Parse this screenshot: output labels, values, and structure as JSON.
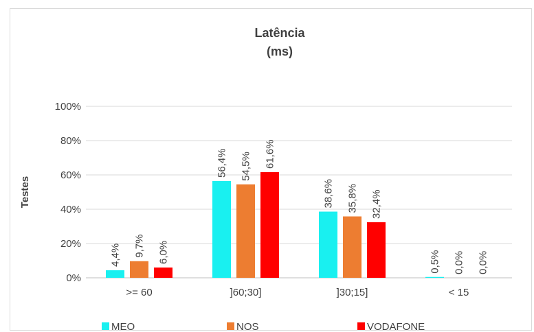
{
  "chart_data": {
    "type": "bar",
    "title": "Latência",
    "subtitle": "(ms)",
    "ylabel": "Testes",
    "xlabel": "",
    "ylim": [
      0,
      100
    ],
    "yticks": [
      "0%",
      "20%",
      "40%",
      "60%",
      "80%",
      "100%"
    ],
    "categories": [
      ">= 60",
      "]60;30]",
      "]30;15]",
      "< 15"
    ],
    "series": [
      {
        "name": "MEO",
        "color": "#19f0f0",
        "values": [
          4.4,
          56.4,
          38.6,
          0.5
        ],
        "labels": [
          "4,4%",
          "56,4%",
          "38,6%",
          "0,5%"
        ]
      },
      {
        "name": "NOS",
        "color": "#ed7d31",
        "values": [
          9.7,
          54.5,
          35.8,
          0.0
        ],
        "labels": [
          "9,7%",
          "54,5%",
          "35,8%",
          "0,0%"
        ]
      },
      {
        "name": "VODAFONE",
        "color": "#ff0000",
        "values": [
          6.0,
          61.6,
          32.4,
          0.0
        ],
        "labels": [
          "6,0%",
          "61,6%",
          "32,4%",
          "0,0%"
        ]
      }
    ],
    "grid": true,
    "legend_position": "bottom"
  }
}
